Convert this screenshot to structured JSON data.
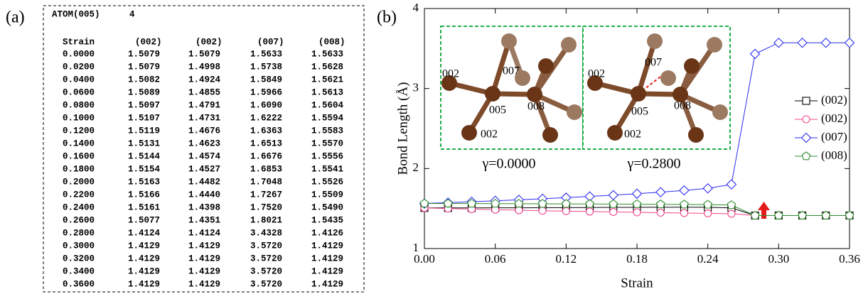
{
  "panels": [
    "(a)",
    "(b)"
  ],
  "table": {
    "title": "ATOM(005)",
    "title_value": "4",
    "columns": [
      "Strain",
      "(002)",
      "(002)",
      "(007)",
      "(008)"
    ],
    "rows": [
      [
        "0.0000",
        "1.5079",
        "1.5079",
        "1.5633",
        "1.5633"
      ],
      [
        "0.0200",
        "1.5079",
        "1.4998",
        "1.5738",
        "1.5628"
      ],
      [
        "0.0400",
        "1.5082",
        "1.4924",
        "1.5849",
        "1.5621"
      ],
      [
        "0.0600",
        "1.5089",
        "1.4855",
        "1.5966",
        "1.5613"
      ],
      [
        "0.0800",
        "1.5097",
        "1.4791",
        "1.6090",
        "1.5604"
      ],
      [
        "0.1000",
        "1.5107",
        "1.4731",
        "1.6222",
        "1.5594"
      ],
      [
        "0.1200",
        "1.5119",
        "1.4676",
        "1.6363",
        "1.5583"
      ],
      [
        "0.1400",
        "1.5131",
        "1.4623",
        "1.6513",
        "1.5570"
      ],
      [
        "0.1600",
        "1.5144",
        "1.4574",
        "1.6676",
        "1.5556"
      ],
      [
        "0.1800",
        "1.5154",
        "1.4527",
        "1.6853",
        "1.5541"
      ],
      [
        "0.2000",
        "1.5163",
        "1.4482",
        "1.7048",
        "1.5526"
      ],
      [
        "0.2200",
        "1.5166",
        "1.4440",
        "1.7267",
        "1.5509"
      ],
      [
        "0.2400",
        "1.5161",
        "1.4398",
        "1.7520",
        "1.5490"
      ],
      [
        "0.2600",
        "1.5077",
        "1.4351",
        "1.8021",
        "1.5435"
      ],
      [
        "0.2800",
        "1.4124",
        "1.4124",
        "3.4328",
        "1.4126"
      ],
      [
        "0.3000",
        "1.4129",
        "1.4129",
        "3.5720",
        "1.4129"
      ],
      [
        "0.3200",
        "1.4129",
        "1.4129",
        "3.5720",
        "1.4129"
      ],
      [
        "0.3400",
        "1.4129",
        "1.4129",
        "3.5720",
        "1.4129"
      ],
      [
        "0.3600",
        "1.4129",
        "1.4129",
        "3.5720",
        "1.4129"
      ]
    ]
  },
  "insets": [
    {
      "caption": "γ=0.0000",
      "labels": [
        "002",
        "007",
        "005",
        "008",
        "002"
      ]
    },
    {
      "caption": "γ=0.2800",
      "labels": [
        "002",
        "007",
        "005",
        "008",
        "002"
      ]
    }
  ],
  "chart_data": {
    "type": "line",
    "x_label": "Strain",
    "y_label": "Bond Length (Å)",
    "x": [
      0,
      0.02,
      0.04,
      0.06,
      0.08,
      0.1,
      0.12,
      0.14,
      0.16,
      0.18,
      0.2,
      0.22,
      0.24,
      0.26,
      0.28,
      0.3,
      0.32,
      0.34,
      0.36
    ],
    "xlim": [
      0,
      0.36
    ],
    "xticks": [
      {
        "value": 0,
        "label": "0.00"
      },
      0.06,
      0.12,
      0.18,
      0.24,
      {
        "value": 0.3,
        "label": "0.30"
      },
      0.36
    ],
    "ylim": [
      1,
      4
    ],
    "yticks": [
      1,
      2,
      3,
      4
    ],
    "legend": "center right",
    "series": [
      {
        "name": "(002)",
        "color": "#000000",
        "marker": "square",
        "values": [
          1.5079,
          1.5079,
          1.5082,
          1.5089,
          1.5097,
          1.5107,
          1.5119,
          1.5131,
          1.5144,
          1.5154,
          1.5163,
          1.5166,
          1.5161,
          1.5077,
          1.4124,
          1.4129,
          1.4129,
          1.4129,
          1.4129
        ]
      },
      {
        "name": "(002)",
        "color": "#f0468c",
        "marker": "circle",
        "values": [
          1.5079,
          1.4998,
          1.4924,
          1.4855,
          1.4791,
          1.4731,
          1.4676,
          1.4623,
          1.4574,
          1.4527,
          1.4482,
          1.444,
          1.4398,
          1.4351,
          1.4124,
          1.4129,
          1.4129,
          1.4129,
          1.4129
        ]
      },
      {
        "name": "(007)",
        "color": "#2b2bf0",
        "marker": "diamond",
        "values": [
          1.5633,
          1.5738,
          1.5849,
          1.5966,
          1.609,
          1.6222,
          1.6363,
          1.6513,
          1.6676,
          1.6853,
          1.7048,
          1.7267,
          1.752,
          1.8021,
          3.4328,
          3.572,
          3.572,
          3.572,
          3.572
        ]
      },
      {
        "name": "(008)",
        "color": "#2e8b2e",
        "marker": "pentagon",
        "values": [
          1.5633,
          1.5628,
          1.5621,
          1.5613,
          1.5604,
          1.5594,
          1.5583,
          1.557,
          1.5556,
          1.5541,
          1.5526,
          1.5509,
          1.549,
          1.5435,
          1.4126,
          1.4129,
          1.4129,
          1.4129,
          1.4129
        ]
      }
    ]
  }
}
